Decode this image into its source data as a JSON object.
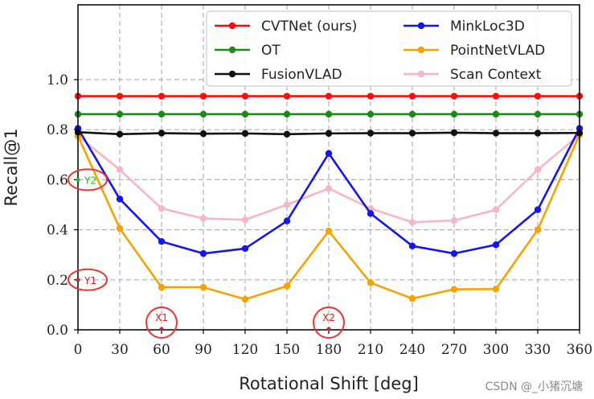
{
  "chart_data": {
    "type": "line",
    "xlabel": "Rotational Shift [deg]",
    "ylabel": "Recall@1",
    "xlim": [
      0,
      360
    ],
    "ylim": [
      0,
      1.0
    ],
    "xticks": [
      0,
      30,
      60,
      90,
      120,
      150,
      180,
      210,
      240,
      270,
      300,
      330,
      360
    ],
    "yticks": [
      "0.0",
      "0.2",
      "0.4",
      "0.6",
      "0.8",
      "1.0"
    ],
    "grid": true,
    "legend_position": "top-right",
    "x": [
      0,
      30,
      60,
      90,
      120,
      150,
      180,
      210,
      240,
      270,
      300,
      330,
      360
    ],
    "series": [
      {
        "name": "CVTNet (ours)",
        "color": "#ee1111",
        "values": [
          0.934,
          0.934,
          0.934,
          0.934,
          0.934,
          0.934,
          0.934,
          0.934,
          0.934,
          0.934,
          0.934,
          0.934,
          0.934
        ]
      },
      {
        "name": "MinkLoc3D",
        "color": "#1515ee",
        "values": [
          0.805,
          0.523,
          0.353,
          0.305,
          0.325,
          0.435,
          0.705,
          0.465,
          0.335,
          0.305,
          0.34,
          0.48,
          0.805
        ]
      },
      {
        "name": "OT",
        "color": "#1a8a1a",
        "values": [
          0.862,
          0.862,
          0.862,
          0.862,
          0.862,
          0.862,
          0.862,
          0.862,
          0.862,
          0.862,
          0.862,
          0.862,
          0.862
        ]
      },
      {
        "name": "PointNetVLAD",
        "color": "#f5a300",
        "values": [
          0.775,
          0.405,
          0.17,
          0.17,
          0.122,
          0.175,
          0.395,
          0.188,
          0.125,
          0.162,
          0.163,
          0.4,
          0.78
        ]
      },
      {
        "name": "FusionVLAD",
        "color": "#111111",
        "values": [
          0.79,
          0.782,
          0.786,
          0.784,
          0.785,
          0.782,
          0.785,
          0.786,
          0.786,
          0.788,
          0.786,
          0.786,
          0.787
        ]
      },
      {
        "name": "Scan Context",
        "color": "#f7b6c8",
        "values": [
          0.775,
          0.64,
          0.485,
          0.445,
          0.44,
          0.5,
          0.565,
          0.485,
          0.43,
          0.437,
          0.48,
          0.64,
          0.78
        ]
      }
    ],
    "legend_layout": [
      [
        "CVTNet (ours)",
        "MinkLoc3D"
      ],
      [
        "OT",
        "PointNetVLAD"
      ],
      [
        "FusionVLAD",
        "Scan Context"
      ]
    ],
    "annotations": [
      {
        "label": "Y2",
        "x": 0,
        "y": 0.6,
        "color": "#22bb22",
        "circle_color": "#ee3333"
      },
      {
        "label": "Y1",
        "x": 0,
        "y": 0.2,
        "color": "#cc2222",
        "circle_color": "#ee3333"
      },
      {
        "label": "X1",
        "x": 60,
        "y": 0.0,
        "color": "#cc2222",
        "circle_color": "#ee3333"
      },
      {
        "label": "X2",
        "x": 180,
        "y": 0.0,
        "color": "#cc2222",
        "circle_color": "#ee3333"
      }
    ]
  },
  "watermark": "CSDN @_小猪沉塘"
}
